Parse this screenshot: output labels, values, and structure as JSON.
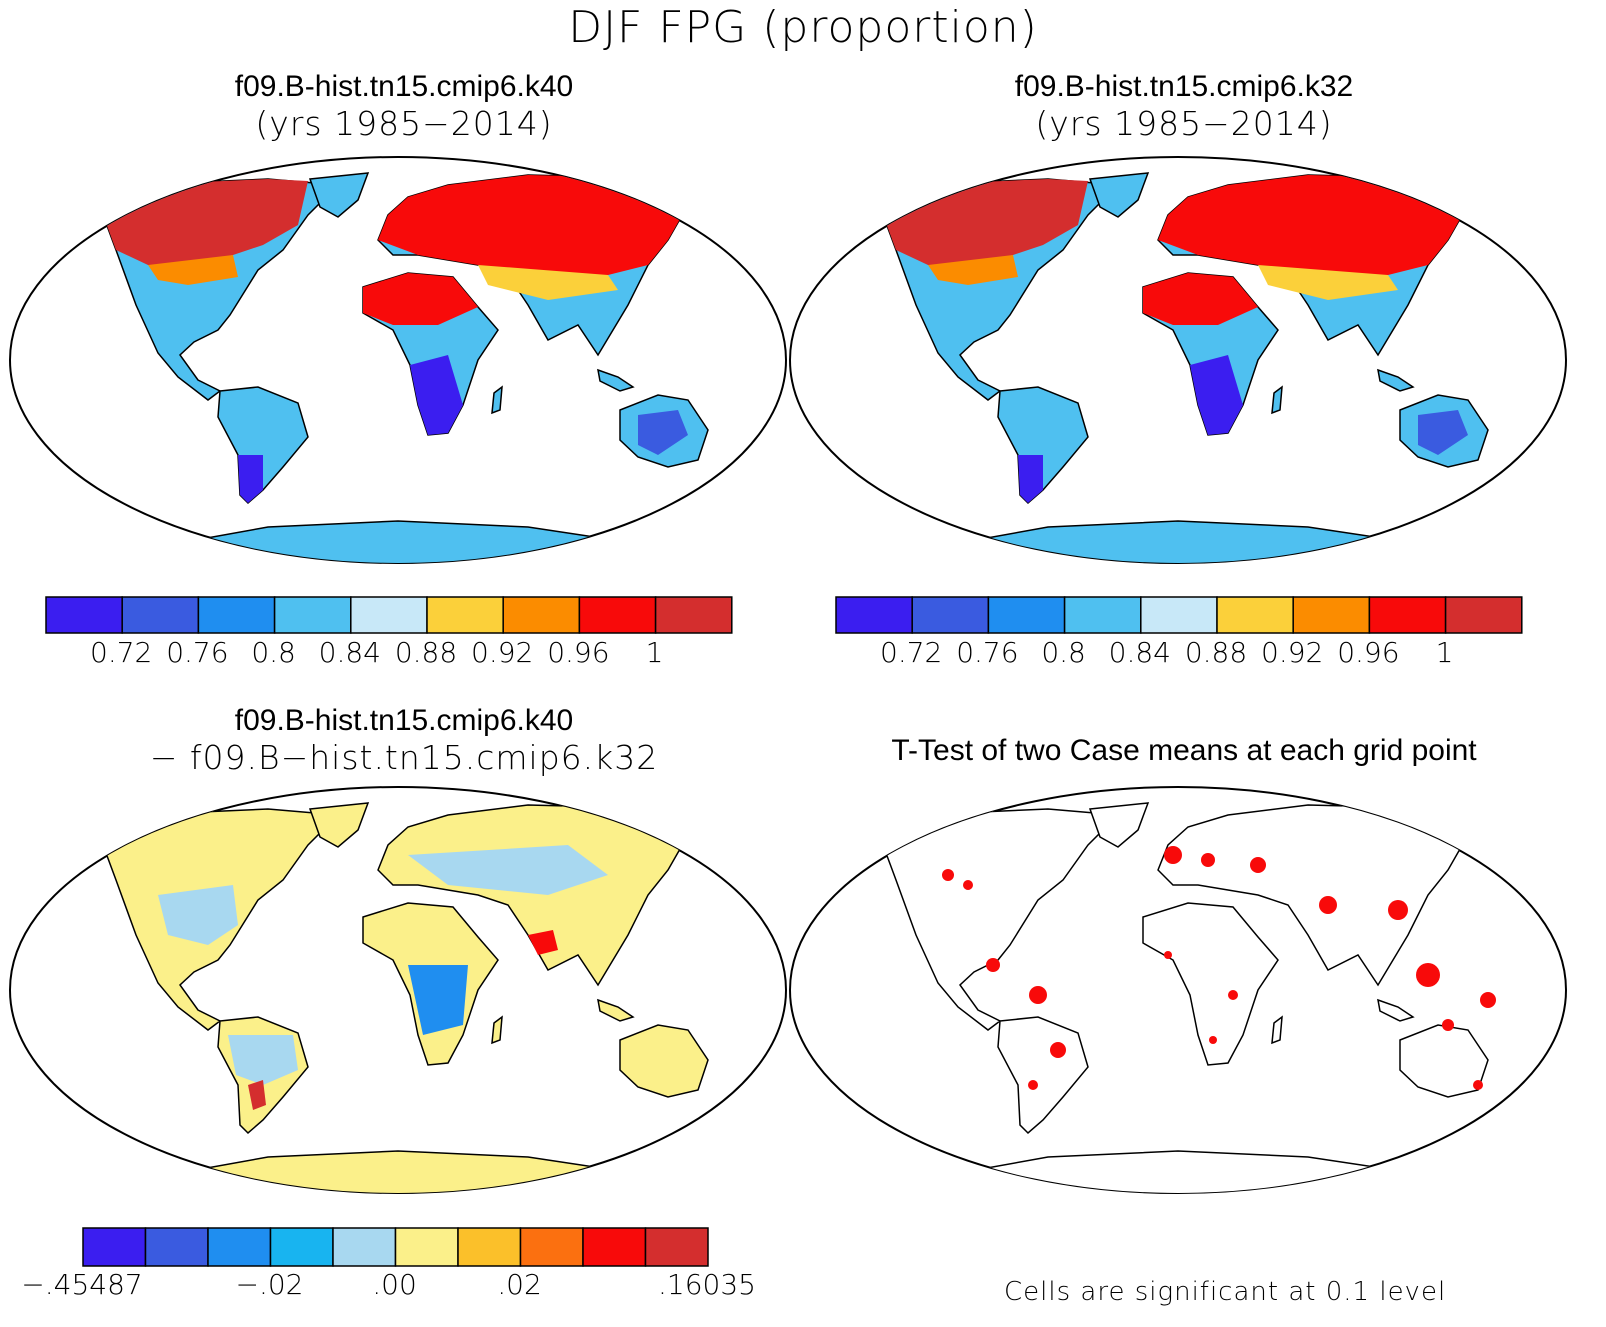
{
  "figure": {
    "title": "DJF FPG (proportion)",
    "panels": [
      {
        "id": "k40",
        "title_line1": "f09.B-hist.tn15.cmip6.k40",
        "title_line2": "(yrs 1985−2014)"
      },
      {
        "id": "k32",
        "title_line1": "f09.B-hist.tn15.cmip6.k32",
        "title_line2": "(yrs 1985−2014)"
      },
      {
        "id": "diff",
        "title_line1": "f09.B-hist.tn15.cmip6.k40",
        "title_line2": "− f09.B−hist.tn15.cmip6.k32"
      },
      {
        "id": "ttest",
        "title_line1": "T-Test of two Case means at each grid point",
        "title_line2": ""
      }
    ],
    "note": "Cells are significant at 0.1 level"
  },
  "colorbars": {
    "main": {
      "colors": [
        "#3b1ef0",
        "#3a5be0",
        "#1f8ef0",
        "#4fc0f0",
        "#c8e8f8",
        "#fbd03a",
        "#fb8c00",
        "#f80a0a",
        "#d42e2e"
      ],
      "labels": [
        "0.72",
        "0.76",
        "0.8",
        "0.84",
        "0.88",
        "0.92",
        "0.96",
        "1"
      ]
    },
    "diff": {
      "colors": [
        "#3b1ef0",
        "#3a5be0",
        "#1f8ef0",
        "#18b4f0",
        "#a8d8f0",
        "#fbf08a",
        "#fbc02a",
        "#fb7010",
        "#f80a0a",
        "#d42e2e"
      ],
      "labels": [
        "−.45487",
        "−.02",
        ".00",
        ".02",
        ".16035"
      ],
      "label_positions": [
        0,
        3,
        5,
        7,
        10
      ]
    }
  }
}
